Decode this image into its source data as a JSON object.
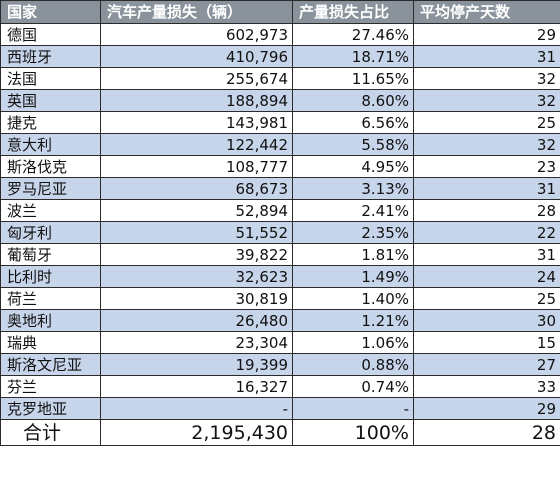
{
  "headers": [
    "国家",
    "汽车产量损失（辆）",
    "产量损失占比",
    "平均停产天数"
  ],
  "rows": [
    {
      "country": "德国",
      "loss": "602,973",
      "share": "27.46%",
      "days": "29"
    },
    {
      "country": "西班牙",
      "loss": "410,796",
      "share": "18.71%",
      "days": "31"
    },
    {
      "country": "法国",
      "loss": "255,674",
      "share": "11.65%",
      "days": "32"
    },
    {
      "country": "英国",
      "loss": "188,894",
      "share": "8.60%",
      "days": "32"
    },
    {
      "country": "捷克",
      "loss": "143,981",
      "share": "6.56%",
      "days": "25"
    },
    {
      "country": "意大利",
      "loss": "122,442",
      "share": "5.58%",
      "days": "32"
    },
    {
      "country": "斯洛伐克",
      "loss": "108,777",
      "share": "4.95%",
      "days": "23"
    },
    {
      "country": "罗马尼亚",
      "loss": "68,673",
      "share": "3.13%",
      "days": "31"
    },
    {
      "country": "波兰",
      "loss": "52,894",
      "share": "2.41%",
      "days": "28"
    },
    {
      "country": "匈牙利",
      "loss": "51,552",
      "share": "2.35%",
      "days": "22"
    },
    {
      "country": "葡萄牙",
      "loss": "39,822",
      "share": "1.81%",
      "days": "31"
    },
    {
      "country": "比利时",
      "loss": "32,623",
      "share": "1.49%",
      "days": "24"
    },
    {
      "country": "荷兰",
      "loss": "30,819",
      "share": "1.40%",
      "days": "25"
    },
    {
      "country": "奥地利",
      "loss": "26,480",
      "share": "1.21%",
      "days": "30"
    },
    {
      "country": "瑞典",
      "loss": "23,304",
      "share": "1.06%",
      "days": "15"
    },
    {
      "country": "斯洛文尼亚",
      "loss": "19,399",
      "share": "0.88%",
      "days": "27"
    },
    {
      "country": "芬兰",
      "loss": "16,327",
      "share": "0.74%",
      "days": "33"
    },
    {
      "country": "克罗地亚",
      "loss": "-",
      "share": "-",
      "days": "29"
    }
  ],
  "total": {
    "country": "合计",
    "loss": "2,195,430",
    "share": "100%",
    "days": "28"
  },
  "colors": {
    "header_bg": "#8a929b",
    "shaded_row": "#c7d5ea",
    "border": "#2b2b2b"
  }
}
